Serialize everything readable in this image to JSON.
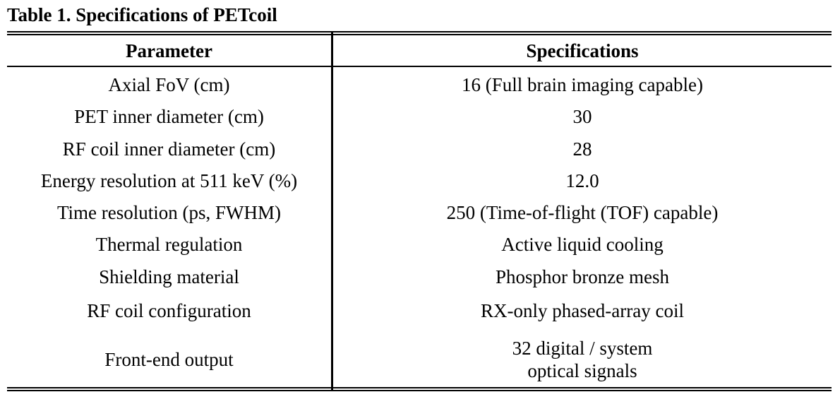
{
  "caption": "Table 1. Specifications of PETcoil",
  "table": {
    "headers": {
      "parameter": "Parameter",
      "specifications": "Specifications"
    },
    "rows": [
      {
        "parameter": "Axial FoV (cm)",
        "specification": "16 (Full brain imaging capable)"
      },
      {
        "parameter": "PET inner diameter (cm)",
        "specification": "30"
      },
      {
        "parameter": "RF coil inner diameter (cm)",
        "specification": "28"
      },
      {
        "parameter": "Energy resolution at 511 keV (%)",
        "specification": "12.0"
      },
      {
        "parameter": "Time resolution (ps, FWHM)",
        "specification": "250 (Time-of-flight (TOF) capable)"
      },
      {
        "parameter": "Thermal regulation",
        "specification": "Active liquid cooling"
      },
      {
        "parameter": "Shielding material",
        "specification": "Phosphor bronze mesh"
      },
      {
        "parameter": "RF coil configuration",
        "specification": "RX-only phased-array coil"
      },
      {
        "parameter": "Front-end output",
        "specification_lines": [
          "32 digital / system",
          "optical signals"
        ]
      }
    ]
  }
}
